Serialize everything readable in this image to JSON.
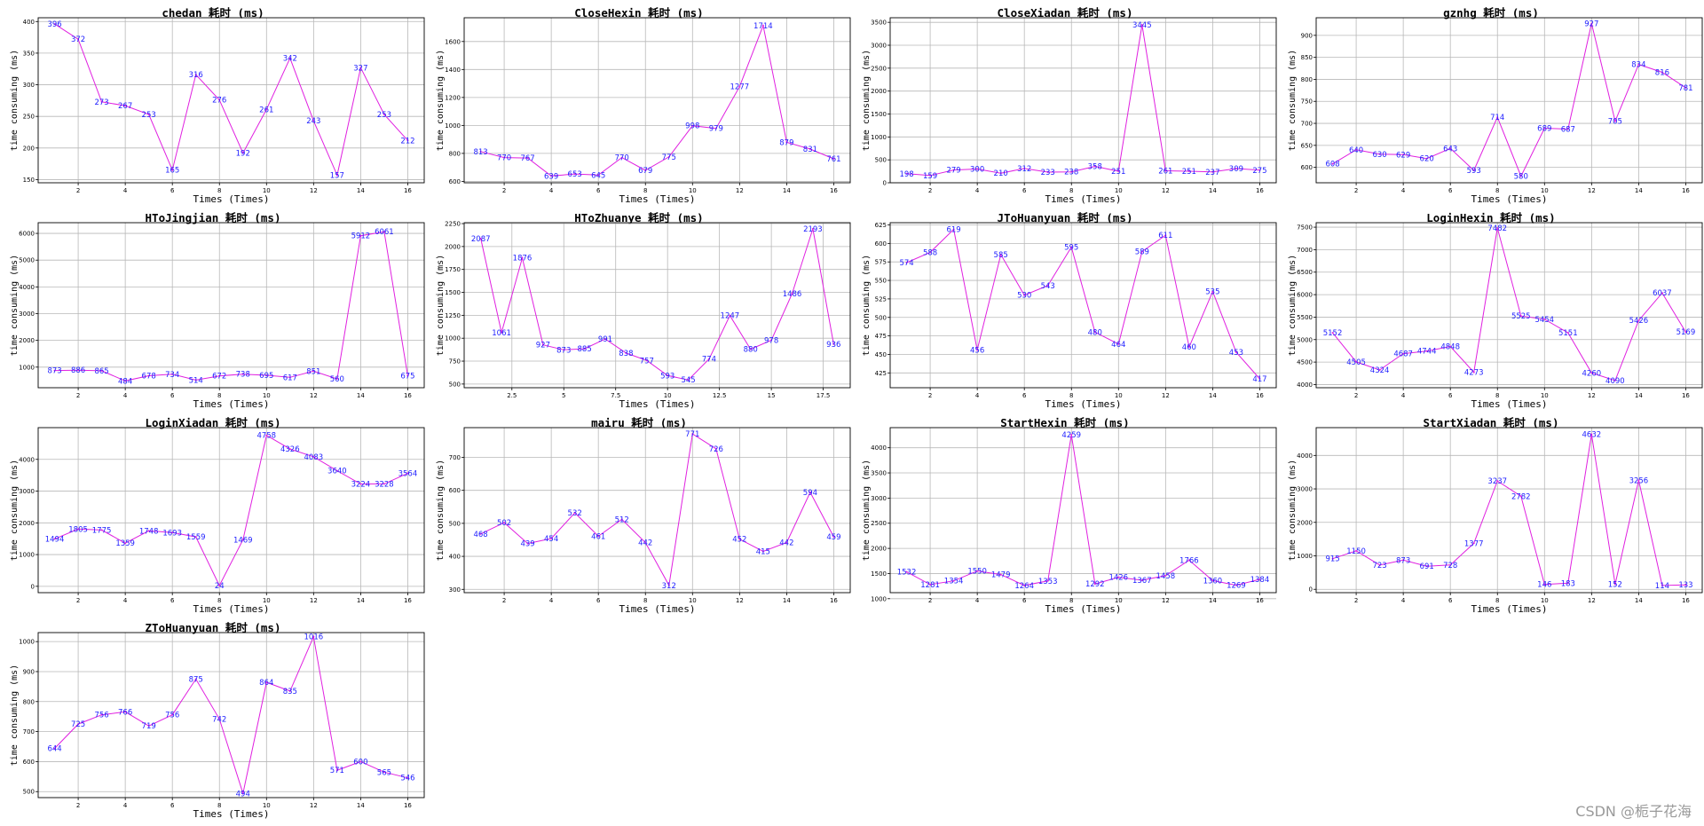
{
  "watermark": "CSDN @栀子花海",
  "style": {
    "line_color": "#e020e0",
    "label_color": "#2020ff",
    "grid_color": "#b8b8b8"
  },
  "chart_data": [
    {
      "type": "line",
      "title": "chedan 耗时 (ms)",
      "xlabel": "Times (Times)",
      "ylabel": "time consuming (ms)",
      "x": [
        1,
        2,
        3,
        4,
        5,
        6,
        7,
        8,
        9,
        10,
        11,
        12,
        13,
        14,
        15,
        16
      ],
      "values": [
        396,
        372,
        273,
        267,
        253,
        165,
        316,
        276,
        192,
        261,
        342,
        243,
        157,
        327,
        253,
        212
      ],
      "xticks": [
        2,
        4,
        6,
        8,
        10,
        12,
        14,
        16
      ],
      "yticks": [
        150,
        200,
        250,
        300,
        350,
        400
      ],
      "xlim": [
        0.3,
        16.7
      ],
      "ylim": [
        145,
        406
      ]
    },
    {
      "type": "line",
      "title": "CloseHexin 耗时 (ms)",
      "xlabel": "Times (Times)",
      "ylabel": "time consuming (ms)",
      "x": [
        1,
        2,
        3,
        4,
        5,
        6,
        7,
        8,
        9,
        10,
        11,
        12,
        13,
        14,
        15,
        16
      ],
      "values": [
        813,
        770,
        767,
        639,
        653,
        645,
        770,
        679,
        775,
        998,
        979,
        1277,
        1714,
        879,
        831,
        761
      ],
      "xticks": [
        2,
        4,
        6,
        8,
        10,
        12,
        14,
        16
      ],
      "yticks": [
        600,
        800,
        1000,
        1200,
        1400,
        1600
      ],
      "xlim": [
        0.3,
        16.7
      ],
      "ylim": [
        590,
        1770
      ]
    },
    {
      "type": "line",
      "title": "CloseXiadan 耗时 (ms)",
      "xlabel": "Times (Times)",
      "ylabel": "time consuming (ms)",
      "x": [
        1,
        2,
        3,
        4,
        5,
        6,
        7,
        8,
        9,
        10,
        11,
        12,
        13,
        14,
        15,
        16
      ],
      "values": [
        198,
        159,
        279,
        300,
        210,
        312,
        233,
        238,
        358,
        251,
        3445,
        261,
        251,
        237,
        309,
        275
      ],
      "xticks": [
        2,
        4,
        6,
        8,
        10,
        12,
        14,
        16
      ],
      "yticks": [
        0,
        500,
        1000,
        1500,
        2000,
        2500,
        3000,
        3500
      ],
      "xlim": [
        0.3,
        16.7
      ],
      "ylim": [
        0,
        3600
      ]
    },
    {
      "type": "line",
      "title": "gznhg 耗时 (ms)",
      "xlabel": "Times (Times)",
      "ylabel": "time consuming (ms)",
      "x": [
        1,
        2,
        3,
        4,
        5,
        6,
        7,
        8,
        9,
        10,
        11,
        12,
        13,
        14,
        15,
        16
      ],
      "values": [
        608,
        640,
        630,
        629,
        620,
        643,
        593,
        714,
        580,
        689,
        687,
        927,
        705,
        834,
        816,
        781
      ],
      "xticks": [
        2,
        4,
        6,
        8,
        10,
        12,
        14,
        16
      ],
      "yticks": [
        600,
        650,
        700,
        750,
        800,
        850,
        900
      ],
      "xlim": [
        0.3,
        16.7
      ],
      "ylim": [
        565,
        940
      ]
    },
    {
      "type": "line",
      "title": "HToJingjian 耗时 (ms)",
      "xlabel": "Times (Times)",
      "ylabel": "time consuming (ms)",
      "x": [
        1,
        2,
        3,
        4,
        5,
        6,
        7,
        8,
        9,
        10,
        11,
        12,
        13,
        14,
        15,
        16
      ],
      "values": [
        873,
        886,
        865,
        484,
        678,
        734,
        514,
        672,
        738,
        695,
        617,
        851,
        560,
        5912,
        6061,
        675
      ],
      "xticks": [
        2,
        4,
        6,
        8,
        10,
        12,
        14,
        16
      ],
      "yticks": [
        1000,
        2000,
        3000,
        4000,
        5000,
        6000
      ],
      "xlim": [
        0.3,
        16.7
      ],
      "ylim": [
        230,
        6400
      ]
    },
    {
      "type": "line",
      "title": "HToZhuanye 耗时 (ms)",
      "xlabel": "Times (Times)",
      "ylabel": "time consuming (ms)",
      "x": [
        1,
        2,
        3,
        4,
        5,
        6,
        7,
        8,
        9,
        10,
        11,
        12,
        13,
        14,
        15,
        16,
        17,
        18
      ],
      "values": [
        2087,
        1061,
        1876,
        927,
        873,
        885,
        991,
        838,
        757,
        593,
        545,
        774,
        1247,
        880,
        978,
        1486,
        2193,
        936
      ],
      "xticks": [
        2.5,
        5.0,
        7.5,
        10.0,
        12.5,
        15.0,
        17.5
      ],
      "yticks": [
        500,
        750,
        1000,
        1250,
        1500,
        1750,
        2000,
        2250
      ],
      "xlim": [
        0.2,
        18.8
      ],
      "ylim": [
        460,
        2260
      ]
    },
    {
      "type": "line",
      "title": "JToHuanyuan 耗时 (ms)",
      "xlabel": "Times (Times)",
      "ylabel": "time consuming (ms)",
      "x": [
        1,
        2,
        3,
        4,
        5,
        6,
        7,
        8,
        9,
        10,
        11,
        12,
        13,
        14,
        15,
        16
      ],
      "values": [
        574,
        588,
        619,
        456,
        585,
        530,
        543,
        595,
        480,
        464,
        589,
        611,
        460,
        535,
        453,
        417
      ],
      "xticks": [
        2,
        4,
        6,
        8,
        10,
        12,
        14,
        16
      ],
      "yticks": [
        425,
        450,
        475,
        500,
        525,
        550,
        575,
        600,
        625
      ],
      "xlim": [
        0.3,
        16.7
      ],
      "ylim": [
        405,
        628
      ]
    },
    {
      "type": "line",
      "title": "LoginHexin 耗时 (ms)",
      "xlabel": "Times (Times)",
      "ylabel": "time consuming (ms)",
      "x": [
        1,
        2,
        3,
        4,
        5,
        6,
        7,
        8,
        9,
        10,
        11,
        12,
        13,
        14,
        15,
        16
      ],
      "values": [
        5152,
        4505,
        4324,
        4687,
        4744,
        4848,
        4273,
        7482,
        5525,
        5454,
        5151,
        4260,
        4090,
        5426,
        6037,
        5169
      ],
      "xticks": [
        2,
        4,
        6,
        8,
        10,
        12,
        14,
        16
      ],
      "yticks": [
        4000,
        4500,
        5000,
        5500,
        6000,
        6500,
        7000,
        7500
      ],
      "xlim": [
        0.3,
        16.7
      ],
      "ylim": [
        3930,
        7600
      ]
    },
    {
      "type": "line",
      "title": "LoginXiadan 耗时 (ms)",
      "xlabel": "Times (Times)",
      "ylabel": "time consuming (ms)",
      "x": [
        1,
        2,
        3,
        4,
        5,
        6,
        7,
        8,
        9,
        10,
        11,
        12,
        13,
        14,
        15,
        16
      ],
      "values": [
        1494,
        1805,
        1775,
        1359,
        1748,
        1693,
        1559,
        24,
        1469,
        4758,
        4326,
        4083,
        3640,
        3224,
        3228,
        3564
      ],
      "xticks": [
        2,
        4,
        6,
        8,
        10,
        12,
        14,
        16
      ],
      "yticks": [
        0,
        1000,
        2000,
        3000,
        4000
      ],
      "xlim": [
        0.3,
        16.7
      ],
      "ylim": [
        -200,
        5000
      ]
    },
    {
      "type": "line",
      "title": "mairu 耗时 (ms)",
      "xlabel": "Times (Times)",
      "ylabel": "time consuming (ms)",
      "x": [
        1,
        2,
        3,
        4,
        5,
        6,
        7,
        8,
        9,
        10,
        11,
        12,
        13,
        14,
        15,
        16
      ],
      "values": [
        468,
        502,
        439,
        454,
        532,
        461,
        512,
        442,
        312,
        771,
        726,
        452,
        415,
        442,
        594,
        459
      ],
      "xticks": [
        2,
        4,
        6,
        8,
        10,
        12,
        14,
        16
      ],
      "yticks": [
        300,
        400,
        500,
        600,
        700
      ],
      "xlim": [
        0.3,
        16.7
      ],
      "ylim": [
        290,
        790
      ]
    },
    {
      "type": "line",
      "title": "StartHexin 耗时 (ms)",
      "xlabel": "Times (Times)",
      "ylabel": "time consuming (ms)",
      "x": [
        1,
        2,
        3,
        4,
        5,
        6,
        7,
        8,
        9,
        10,
        11,
        12,
        13,
        14,
        15,
        16
      ],
      "values": [
        1532,
        1281,
        1354,
        1550,
        1479,
        1264,
        1353,
        4259,
        1292,
        1426,
        1367,
        1458,
        1766,
        1360,
        1269,
        1384
      ],
      "xticks": [
        2,
        4,
        6,
        8,
        10,
        12,
        14,
        16
      ],
      "yticks": [
        1000,
        1500,
        2000,
        2500,
        3000,
        3500,
        4000
      ],
      "xlim": [
        0.3,
        16.7
      ],
      "ylim": [
        1120,
        4400
      ]
    },
    {
      "type": "line",
      "title": "StartXiadan 耗时 (ms)",
      "xlabel": "Times (Times)",
      "ylabel": "time consuming (ms)",
      "x": [
        1,
        2,
        3,
        4,
        5,
        6,
        7,
        8,
        9,
        10,
        11,
        12,
        13,
        14,
        15,
        16
      ],
      "values": [
        915,
        1150,
        723,
        873,
        691,
        728,
        1377,
        3237,
        2782,
        146,
        183,
        4632,
        152,
        3256,
        114,
        133
      ],
      "xticks": [
        2,
        4,
        6,
        8,
        10,
        12,
        14,
        16
      ],
      "yticks": [
        0,
        1000,
        2000,
        3000,
        4000
      ],
      "xlim": [
        0.3,
        16.7
      ],
      "ylim": [
        -100,
        4830
      ]
    },
    {
      "type": "line",
      "title": "ZToHuanyuan 耗时 (ms)",
      "xlabel": "Times (Times)",
      "ylabel": "time consuming (ms)",
      "x": [
        1,
        2,
        3,
        4,
        5,
        6,
        7,
        8,
        9,
        10,
        11,
        12,
        13,
        14,
        15,
        16
      ],
      "values": [
        644,
        725,
        756,
        766,
        719,
        756,
        875,
        742,
        494,
        864,
        835,
        1016,
        571,
        600,
        565,
        546
      ],
      "xticks": [
        2,
        4,
        6,
        8,
        10,
        12,
        14,
        16
      ],
      "yticks": [
        500,
        600,
        700,
        800,
        900,
        1000
      ],
      "xlim": [
        0.3,
        16.7
      ],
      "ylim": [
        480,
        1030
      ]
    }
  ]
}
